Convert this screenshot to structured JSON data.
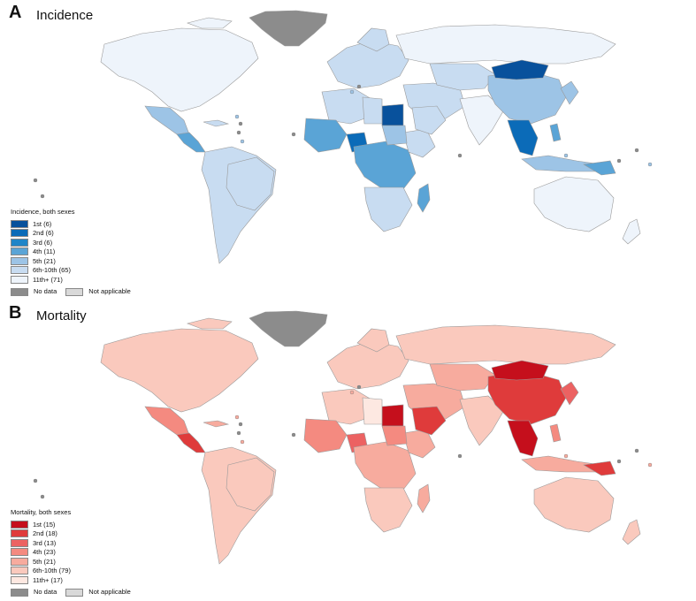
{
  "panels": [
    {
      "letter": "A",
      "title": "Incidence",
      "legend_title": "Incidence, both sexes",
      "classes": [
        {
          "label": "1st (6)",
          "color": "#08519c"
        },
        {
          "label": "2nd (6)",
          "color": "#0b6bb8"
        },
        {
          "label": "3rd (6)",
          "color": "#1f85c8"
        },
        {
          "label": "4th (11)",
          "color": "#5aa4d6"
        },
        {
          "label": "5th (21)",
          "color": "#9dc4e6"
        },
        {
          "label": "6th-10th (65)",
          "color": "#c8dcf1"
        },
        {
          "label": "11th+ (71)",
          "color": "#eef4fb"
        }
      ],
      "no_data": {
        "label": "No data",
        "color": "#8c8c8c"
      },
      "not_applicable": {
        "label": "Not applicable",
        "color": "#d9d9d9"
      }
    },
    {
      "letter": "B",
      "title": "Mortality",
      "legend_title": "Mortality, both sexes",
      "classes": [
        {
          "label": "1st (15)",
          "color": "#c50f1c"
        },
        {
          "label": "2nd (18)",
          "color": "#df3b3b"
        },
        {
          "label": "3rd (13)",
          "color": "#ec6262"
        },
        {
          "label": "4th (23)",
          "color": "#f48a80"
        },
        {
          "label": "5th (21)",
          "color": "#f7ab9e"
        },
        {
          "label": "6th-10th (79)",
          "color": "#fac9bd"
        },
        {
          "label": "11th+ (17)",
          "color": "#fde8e1"
        }
      ],
      "no_data": {
        "label": "No data",
        "color": "#8c8c8c"
      },
      "not_applicable": {
        "label": "Not applicable",
        "color": "#d9d9d9"
      }
    }
  ]
}
